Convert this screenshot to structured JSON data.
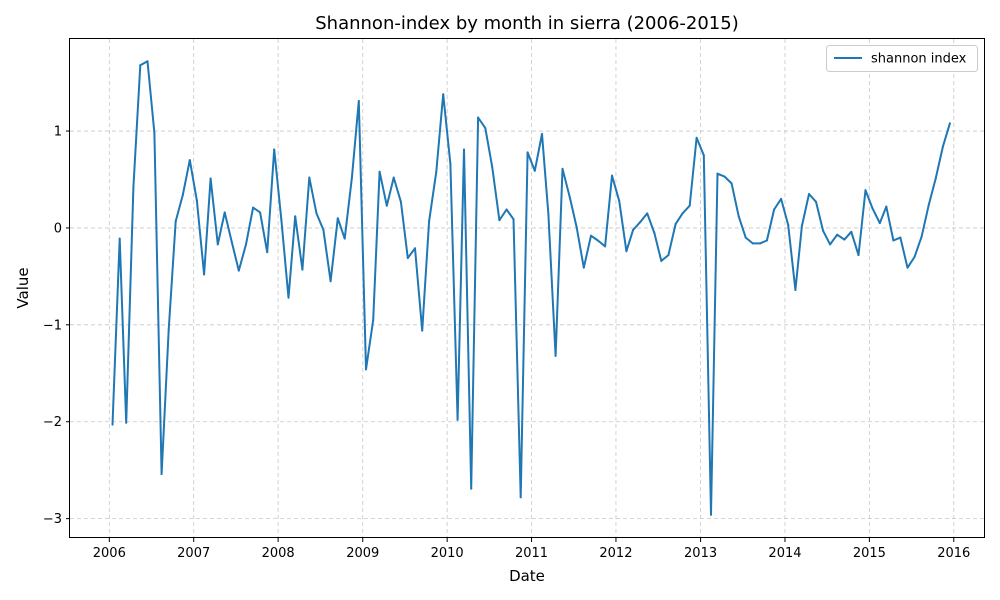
{
  "chart_data": {
    "type": "line",
    "title": "Shannon-index by month in sierra (2006-2015)",
    "xlabel": "Date",
    "ylabel": "Value",
    "xlim": [
      "2005-07-15",
      "2016-05-15"
    ],
    "ylim": [
      -3.2,
      1.95
    ],
    "x_ticks": [
      "2006",
      "2007",
      "2008",
      "2009",
      "2010",
      "2011",
      "2012",
      "2013",
      "2014",
      "2015",
      "2016"
    ],
    "y_ticks": [
      1,
      0,
      -1,
      -2,
      -3
    ],
    "y_tick_labels": [
      "1",
      "0",
      "−1",
      "−2",
      "−3"
    ],
    "grid": true,
    "legend_position": "top-right",
    "series": [
      {
        "name": "shannon index",
        "color": "#1f77b4",
        "x": [
          "2006-01-15",
          "2006-02-15",
          "2006-03-15",
          "2006-04-15",
          "2006-05-15",
          "2006-06-15",
          "2006-07-15",
          "2006-08-15",
          "2006-09-15",
          "2006-10-15",
          "2006-11-15",
          "2006-12-15",
          "2007-01-15",
          "2007-02-15",
          "2007-03-15",
          "2007-04-15",
          "2007-05-15",
          "2007-06-15",
          "2007-07-15",
          "2007-08-15",
          "2007-09-15",
          "2007-10-15",
          "2007-11-15",
          "2007-12-15",
          "2008-01-15",
          "2008-02-15",
          "2008-03-15",
          "2008-04-15",
          "2008-05-15",
          "2008-06-15",
          "2008-07-15",
          "2008-08-15",
          "2008-09-15",
          "2008-10-15",
          "2008-11-15",
          "2008-12-15",
          "2009-01-15",
          "2009-02-15",
          "2009-03-15",
          "2009-04-15",
          "2009-05-15",
          "2009-06-15",
          "2009-07-15",
          "2009-08-15",
          "2009-09-15",
          "2009-10-15",
          "2009-11-15",
          "2009-12-15",
          "2010-01-15",
          "2010-02-15",
          "2010-03-15",
          "2010-04-15",
          "2010-05-15",
          "2010-06-15",
          "2010-07-15",
          "2010-08-15",
          "2010-09-15",
          "2010-10-15",
          "2010-11-15",
          "2010-12-15",
          "2011-01-15",
          "2011-02-15",
          "2011-03-15",
          "2011-04-15",
          "2011-05-15",
          "2011-06-15",
          "2011-07-15",
          "2011-08-15",
          "2011-09-15",
          "2011-10-15",
          "2011-11-15",
          "2011-12-15",
          "2012-01-15",
          "2012-02-15",
          "2012-03-15",
          "2012-04-15",
          "2012-05-15",
          "2012-06-15",
          "2012-07-15",
          "2012-08-15",
          "2012-09-15",
          "2012-10-15",
          "2012-11-15",
          "2012-12-15",
          "2013-01-15",
          "2013-02-15",
          "2013-03-15",
          "2013-04-15",
          "2013-05-15",
          "2013-06-15",
          "2013-07-15",
          "2013-08-15",
          "2013-09-15",
          "2013-10-15",
          "2013-11-15",
          "2013-12-15",
          "2014-01-15",
          "2014-02-15",
          "2014-03-15",
          "2014-04-15",
          "2014-05-15",
          "2014-06-15",
          "2014-07-15",
          "2014-08-15",
          "2014-09-15",
          "2014-10-15",
          "2014-11-15",
          "2014-12-15",
          "2015-01-15",
          "2015-02-15",
          "2015-03-15",
          "2015-04-15",
          "2015-05-15",
          "2015-06-15",
          "2015-07-15",
          "2015-08-15",
          "2015-09-15",
          "2015-10-15",
          "2015-11-15",
          "2015-12-15"
        ],
        "values": [
          -2.03,
          -0.11,
          -2.01,
          0.42,
          1.68,
          1.72,
          0.98,
          -2.54,
          -1.05,
          0.07,
          0.34,
          0.7,
          0.28,
          -0.48,
          0.51,
          -0.17,
          0.16,
          -0.15,
          -0.44,
          -0.17,
          0.21,
          0.16,
          -0.25,
          0.81,
          0.09,
          -0.72,
          0.12,
          -0.43,
          0.52,
          0.15,
          -0.02,
          -0.55,
          0.1,
          -0.11,
          0.52,
          1.31,
          -1.46,
          -0.95,
          0.58,
          0.23,
          0.52,
          0.27,
          -0.31,
          -0.21,
          -1.06,
          0.07,
          0.58,
          1.38,
          0.66,
          -1.98,
          0.81,
          -2.69,
          1.14,
          1.03,
          0.63,
          0.08,
          0.19,
          0.09,
          -2.78,
          0.78,
          0.59,
          0.97,
          0.14,
          -1.32,
          0.61,
          0.32,
          0.01,
          -0.41,
          -0.08,
          -0.13,
          -0.19,
          0.54,
          0.28,
          -0.24,
          -0.02,
          0.06,
          0.15,
          -0.05,
          -0.34,
          -0.28,
          0.04,
          0.15,
          0.23,
          0.93,
          0.75,
          -2.96,
          0.56,
          0.53,
          0.46,
          0.12,
          -0.1,
          -0.16,
          -0.16,
          -0.13,
          0.19,
          0.3,
          0.03,
          -0.64,
          0.02,
          0.35,
          0.27,
          -0.03,
          -0.17,
          -0.07,
          -0.12,
          -0.04,
          -0.28,
          0.39,
          0.2,
          0.05,
          0.22,
          -0.13,
          -0.1,
          -0.41,
          -0.3,
          -0.09,
          0.24,
          0.51,
          0.84,
          1.08
        ]
      }
    ]
  }
}
